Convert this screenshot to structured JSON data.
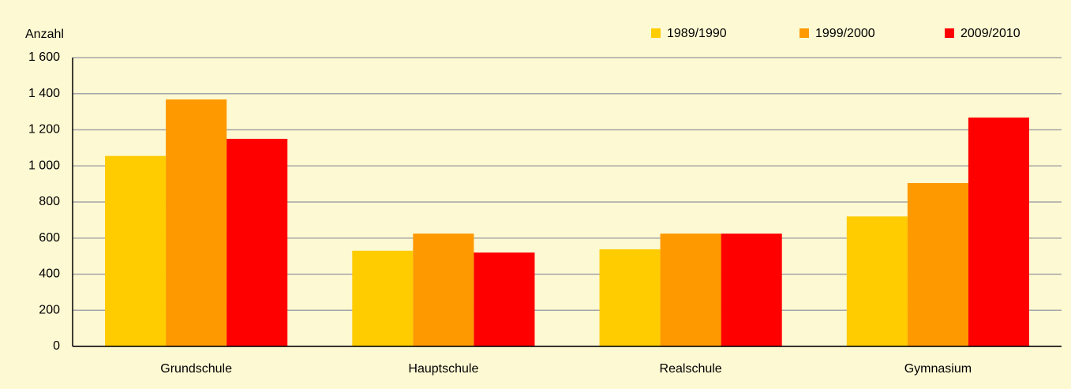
{
  "chart_data": {
    "type": "bar",
    "y_label": "Anzahl",
    "categories": [
      "Grundschule",
      "Hauptschule",
      "Realschule",
      "Gymnasium"
    ],
    "series": [
      {
        "name": "1989/1990",
        "color": "#ffcc00",
        "values": [
          1055,
          530,
          538,
          720
        ]
      },
      {
        "name": "1999/2000",
        "color": "#ff9900",
        "values": [
          1368,
          625,
          625,
          905
        ]
      },
      {
        "name": "2009/2010",
        "color": "#ff0000",
        "values": [
          1150,
          520,
          625,
          1268
        ]
      }
    ],
    "ylim": [
      0,
      1600
    ],
    "yticks": [
      0,
      200,
      400,
      600,
      800,
      {
        "value": 1000,
        "label": "1 000"
      },
      {
        "value": 1200,
        "label": "1 200"
      },
      {
        "value": 1400,
        "label": "1 400"
      },
      {
        "value": 1600,
        "label": "1 600"
      }
    ],
    "grid": true,
    "legend": "top-right"
  }
}
